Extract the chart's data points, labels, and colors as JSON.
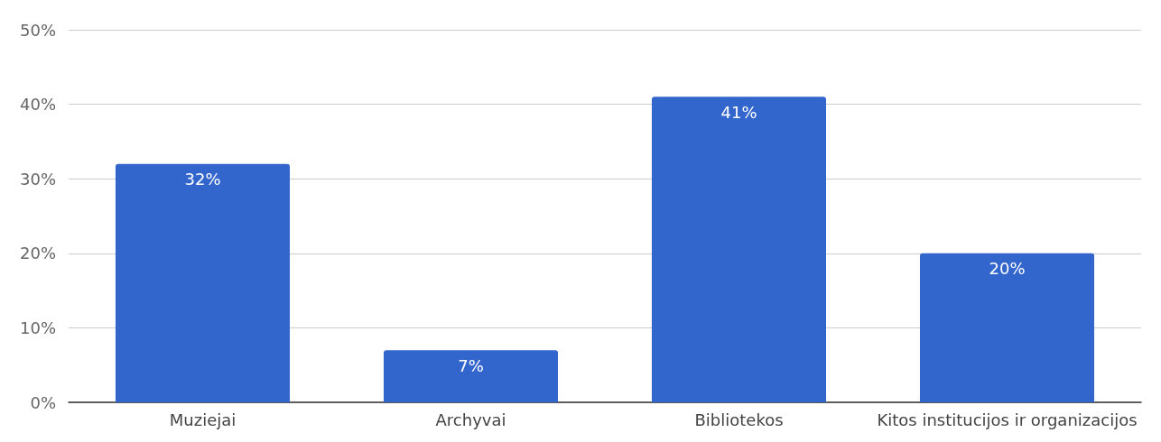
{
  "chart_data": {
    "type": "bar",
    "categories": [
      "Muziejai",
      "Archyvai",
      "Bibliotekos",
      "Kitos institucijos ir organizacijos"
    ],
    "values": [
      32,
      7,
      41,
      20
    ],
    "color": "#3366cc",
    "value_labels": [
      "32%",
      "7%",
      "41%",
      "20%"
    ],
    "ylim": [
      0,
      50
    ],
    "yticks": [
      {
        "value": 0,
        "label": "0%"
      },
      {
        "value": 10,
        "label": "10%"
      },
      {
        "value": 20,
        "label": "20%"
      },
      {
        "value": 30,
        "label": "30%"
      },
      {
        "value": 40,
        "label": "40%"
      },
      {
        "value": 50,
        "label": "50%"
      }
    ],
    "grid": "y"
  }
}
